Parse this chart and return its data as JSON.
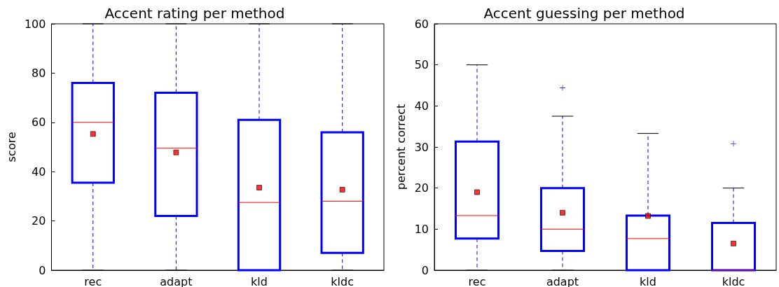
{
  "chart_data": [
    {
      "type": "box",
      "title": "Accent rating per method",
      "ylabel": "score",
      "categories": [
        "rec",
        "adapt",
        "kld",
        "kldc"
      ],
      "color": "#0000ff",
      "marker": "square",
      "grid": false,
      "ylim": [
        0,
        100
      ],
      "yticks": [
        0,
        20,
        40,
        60,
        80,
        100
      ],
      "boxes": [
        {
          "low": 0,
          "q1": 35.5,
          "median": 60,
          "q3": 76,
          "high": 100,
          "mean": 55.3
        },
        {
          "low": 0,
          "q1": 22,
          "median": 49.5,
          "q3": 72,
          "high": 100,
          "mean": 47.8
        },
        {
          "low": 0,
          "q1": 0,
          "median": 27.5,
          "q3": 61,
          "high": 100,
          "mean": 33.5
        },
        {
          "low": 0,
          "q1": 7,
          "median": 28,
          "q3": 56,
          "high": 100,
          "mean": 32.7
        }
      ]
    },
    {
      "type": "box",
      "title": "Accent guessing per method",
      "ylabel": "percent correct",
      "categories": [
        "rec",
        "adapt",
        "kld",
        "kldc"
      ],
      "color": "#0000ff",
      "marker": "square",
      "grid": false,
      "ylim": [
        0,
        60
      ],
      "yticks": [
        0,
        10,
        20,
        30,
        40,
        50,
        60
      ],
      "boxes": [
        {
          "low": 0,
          "q1": 7.7,
          "median": 13.3,
          "q3": 31.3,
          "high": 50,
          "mean": 19
        },
        {
          "low": 0,
          "q1": 4.7,
          "median": 10,
          "q3": 20,
          "high": 37.5,
          "mean": 14,
          "outliers": [
            44.4
          ]
        },
        {
          "low": 0,
          "q1": 0,
          "median": 7.7,
          "q3": 13.3,
          "high": 33.3,
          "mean": 13.2
        },
        {
          "low": 0,
          "q1": 0,
          "median": 0,
          "q3": 11.5,
          "high": 20,
          "mean": 6.5,
          "outliers": [
            30.8
          ]
        }
      ]
    }
  ]
}
